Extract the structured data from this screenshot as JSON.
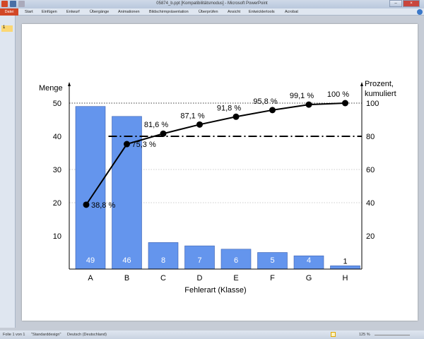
{
  "window": {
    "title": "05874_b.ppt [Kompatibilitätsmodus] - Microsoft PowerPoint"
  },
  "ribbon": {
    "file_tab": "Datei",
    "tabs": [
      "Start",
      "Einfügen",
      "Entwurf",
      "Übergänge",
      "Animationen",
      "Bildschirmpräsentation",
      "Überprüfen",
      "Ansicht",
      "Entwicklertools",
      "Acrobat"
    ]
  },
  "sidebar": {
    "slide_number": "1"
  },
  "status": {
    "slide": "Folie 1 von 1",
    "design": "\"Standarddesign\"",
    "language": "Deutsch (Deutschland)",
    "zoom": "125 %"
  },
  "chart_data": {
    "type": "bar",
    "xlabel": "Fehlerart (Klasse)",
    "ylabel": "Menge",
    "y2label_line1": "Prozent,",
    "y2label_line2": "kumuliert",
    "categories": [
      "A",
      "B",
      "C",
      "D",
      "E",
      "F",
      "G",
      "H"
    ],
    "values": [
      49,
      46,
      8,
      7,
      6,
      5,
      4,
      1
    ],
    "value_labels": [
      "49",
      "46",
      "8",
      "7",
      "6",
      "5",
      "4",
      "1"
    ],
    "ylim": [
      0,
      50
    ],
    "yticks": [
      "10",
      "20",
      "30",
      "40",
      "50"
    ],
    "y2lim": [
      0,
      100
    ],
    "y2ticks": [
      "20",
      "40",
      "60",
      "80",
      "100"
    ],
    "cumulative_percent": [
      38.8,
      75.3,
      81.6,
      87.1,
      91.8,
      95.8,
      99.1,
      100
    ],
    "cumulative_labels": [
      "38,8 %",
      "75,3 %",
      "81,6 %",
      "87,1 %",
      "91,8 %",
      "95,8 %",
      "99,1 %",
      "100 %"
    ],
    "threshold_percent": 80,
    "bar_color": "#6495ed",
    "line_color": "#000000"
  }
}
